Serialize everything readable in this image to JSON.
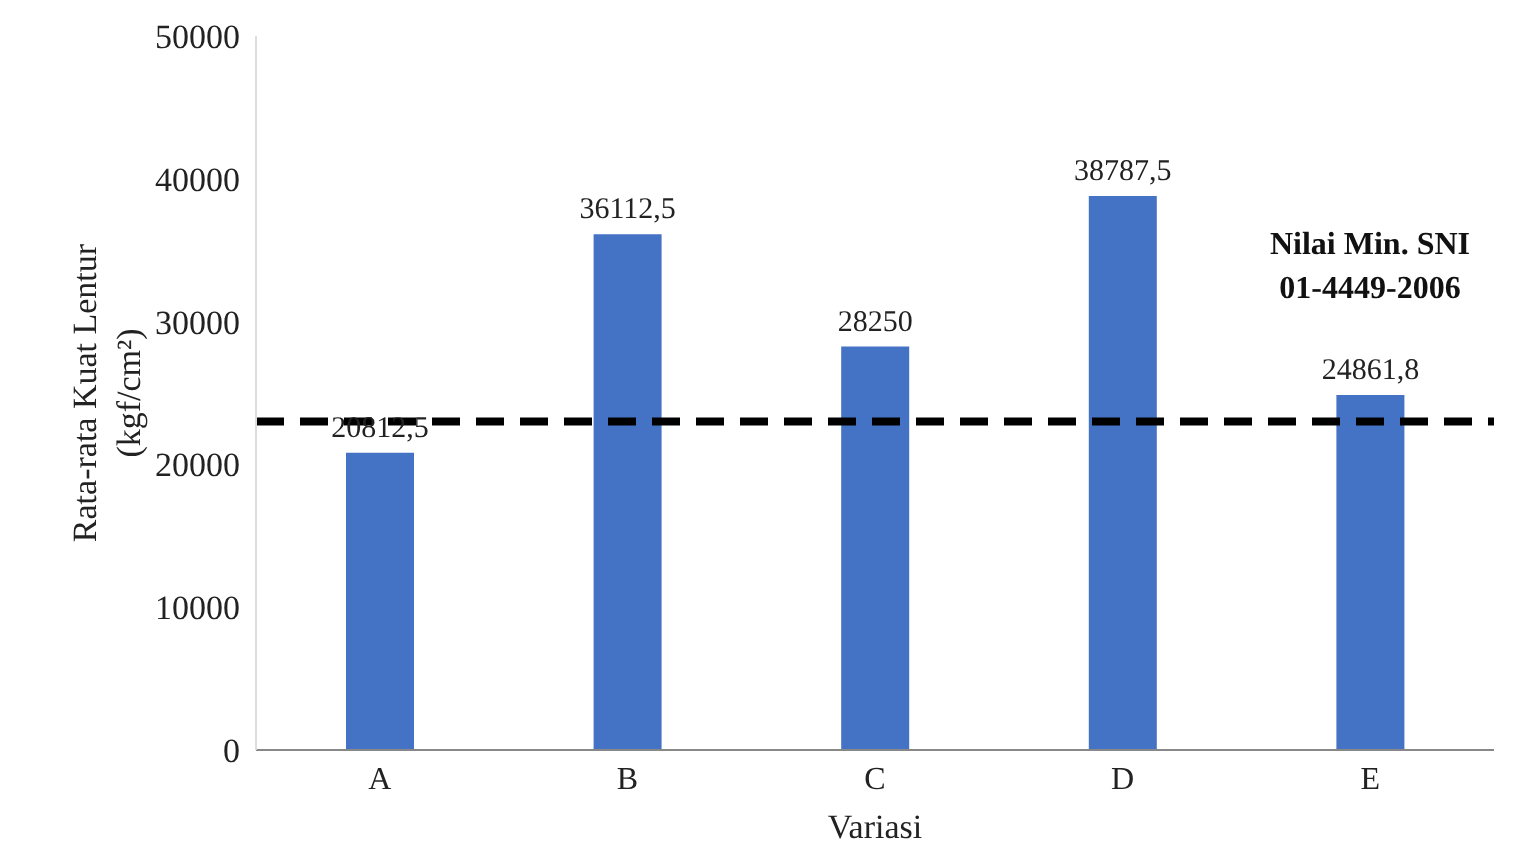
{
  "chart_data": {
    "type": "bar",
    "xlabel": "Variasi",
    "ylabel": "Rata-rata Kuat Lentur\n(kgf/cm²)",
    "categories": [
      "A",
      "B",
      "C",
      "D",
      "E"
    ],
    "values": [
      20812.5,
      36112.5,
      28250,
      38787.5,
      24861.8
    ],
    "value_labels": [
      "20812,5",
      "36112,5",
      "28250",
      "38787,5",
      "24861,8"
    ],
    "color": "#4472c4",
    "ylim": [
      0,
      50000
    ],
    "yticks": [
      0,
      10000,
      20000,
      30000,
      40000,
      50000
    ],
    "grid": false,
    "legend": false,
    "ref_lines": [
      {
        "axis": "y",
        "value": 23000,
        "label": "Nilai Min. SNI\n01-4449-2006",
        "color": "#000000",
        "line_style": "dashed"
      }
    ]
  }
}
